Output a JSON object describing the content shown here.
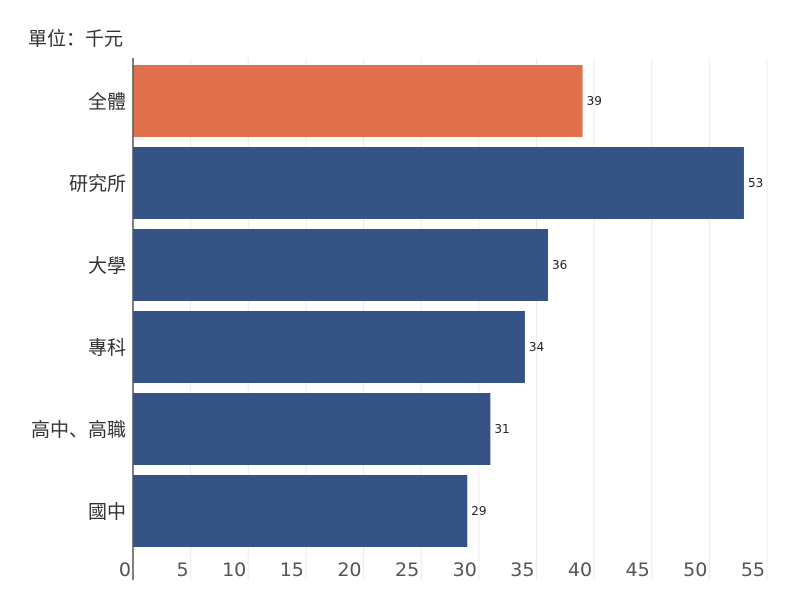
{
  "chart_data": {
    "type": "bar",
    "orientation": "horizontal",
    "unit_label": "單位：千元",
    "categories": [
      "全體",
      "研究所",
      "大學",
      "專科",
      "高中、高職",
      "國中"
    ],
    "values": [
      39,
      53,
      36,
      34,
      31,
      29
    ],
    "highlight_index": 0,
    "colors": {
      "highlight": "#E0714C",
      "default": "#355485",
      "grid": "#ececec",
      "axis": "#555555"
    },
    "xlim": [
      0,
      55
    ],
    "xticks": [
      0,
      5,
      10,
      15,
      20,
      25,
      30,
      35,
      40,
      45,
      50,
      55
    ],
    "grid": true,
    "legend": "none"
  }
}
